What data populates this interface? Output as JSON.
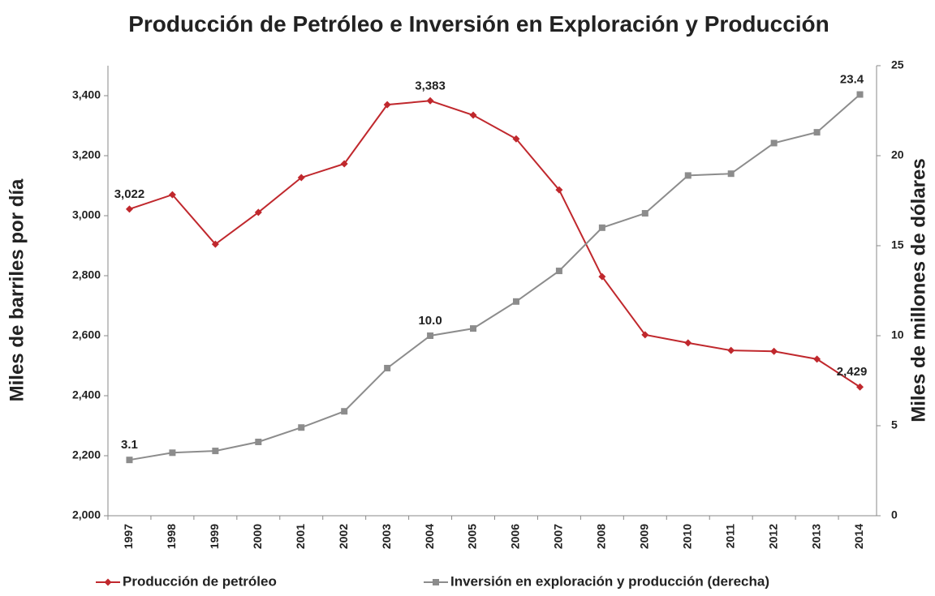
{
  "chart_data": {
    "type": "line",
    "title": "Producción de Petróleo e Inversión en Exploración y Producción",
    "ylabel": "Miles de barriles por día",
    "y2label": "Miles de millones de dólares",
    "categories": [
      "1997",
      "1998",
      "1999",
      "2000",
      "2001",
      "2002",
      "2003",
      "2004",
      "2005",
      "2006",
      "2007",
      "2008",
      "2009",
      "2010",
      "2011",
      "2012",
      "2013",
      "2014"
    ],
    "series": [
      {
        "name": "Producción de petróleo",
        "color": "#c0282d",
        "marker": "diamond",
        "values": [
          3022,
          3070,
          2905,
          3011,
          3127,
          3173,
          3370,
          3383,
          3335,
          3256,
          3086,
          2797,
          2603,
          2576,
          2551,
          2548,
          2522,
          2429
        ],
        "value_labels": [
          "3,022",
          null,
          null,
          null,
          null,
          null,
          null,
          "3,383",
          null,
          null,
          null,
          null,
          null,
          null,
          null,
          null,
          null,
          "2,429"
        ]
      },
      {
        "name": "Inversión en exploración y producción (derecha)",
        "color": "#8c8c8c",
        "marker": "square",
        "axis": "y2",
        "values": [
          3.1,
          3.5,
          3.6,
          4.1,
          4.9,
          5.8,
          8.2,
          10.0,
          10.4,
          11.9,
          13.6,
          16.0,
          16.8,
          18.9,
          19.0,
          20.7,
          21.3,
          23.4
        ],
        "value_labels": [
          "3.1",
          null,
          null,
          null,
          null,
          null,
          null,
          "10.0",
          null,
          null,
          null,
          null,
          null,
          null,
          null,
          null,
          null,
          "23.4"
        ]
      }
    ],
    "ylim": [
      2000,
      3500
    ],
    "yticks": [
      {
        "value": 2000,
        "label": "2,000"
      },
      {
        "value": 2200,
        "label": "2,200"
      },
      {
        "value": 2400,
        "label": "2,400"
      },
      {
        "value": 2600,
        "label": "2,600"
      },
      {
        "value": 2800,
        "label": "2,800"
      },
      {
        "value": 3000,
        "label": "3,000"
      },
      {
        "value": 3200,
        "label": "3,200"
      },
      {
        "value": 3400,
        "label": "3,400"
      }
    ],
    "y2lim": [
      0,
      25
    ],
    "y2ticks": [
      0,
      5,
      10,
      15,
      20,
      25
    ],
    "grid": false,
    "legend": "bottom"
  }
}
